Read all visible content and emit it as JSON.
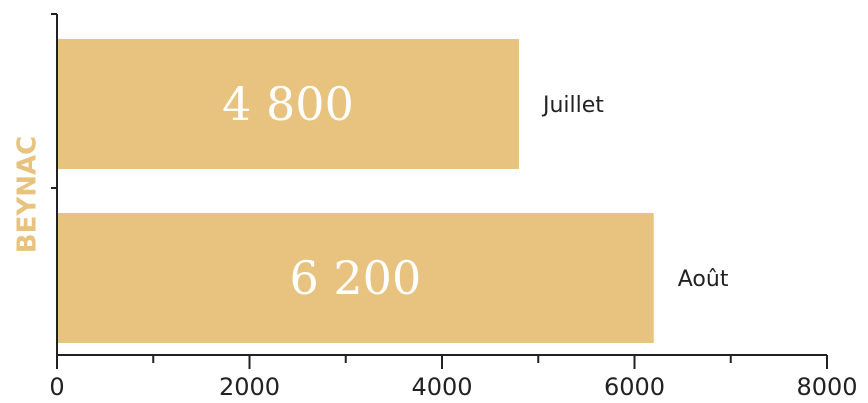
{
  "chart_data": {
    "type": "bar",
    "orientation": "horizontal",
    "ylabel": "BEYNAC",
    "categories": [
      "Juillet",
      "Août"
    ],
    "values": [
      4800,
      6200
    ],
    "data_labels": [
      "4 800",
      "6 200"
    ],
    "xlim": [
      0,
      8000
    ],
    "x_ticks": [
      0,
      2000,
      4000,
      6000,
      8000
    ],
    "grid": false,
    "legend": "none",
    "bar_color": "#E8C37F",
    "axis_title_color": "#E8C37F",
    "label_color": "#ffffff"
  }
}
